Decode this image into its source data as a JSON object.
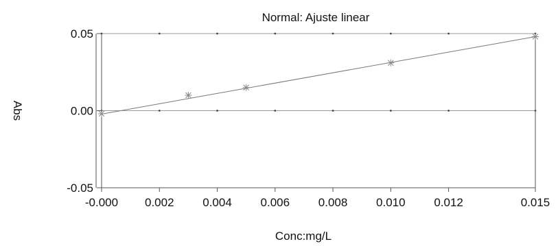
{
  "chart_data": {
    "type": "scatter",
    "title": "Normal: Ajuste linear",
    "xlabel": "Conc:mg/L",
    "ylabel": "Abs",
    "xlim": [
      0,
      0.015
    ],
    "ylim": [
      -0.05,
      0.05
    ],
    "x_ticks": [
      {
        "value": 0,
        "label": "-0.000"
      },
      {
        "value": 0.002,
        "label": "0.002"
      },
      {
        "value": 0.004,
        "label": "0.004"
      },
      {
        "value": 0.006,
        "label": "0.006"
      },
      {
        "value": 0.008,
        "label": "0.008"
      },
      {
        "value": 0.01,
        "label": "0.010"
      },
      {
        "value": 0.012,
        "label": "0.012"
      },
      {
        "value": 0.015,
        "label": "0.015"
      }
    ],
    "y_ticks": [
      {
        "value": 0.05,
        "label": "0.05"
      },
      {
        "value": 0.0,
        "label": "0.00"
      },
      {
        "value": -0.05,
        "label": "-0.05"
      }
    ],
    "points": [
      {
        "x": 0.0,
        "y": -0.002
      },
      {
        "x": 0.003,
        "y": 0.01
      },
      {
        "x": 0.005,
        "y": 0.015
      },
      {
        "x": 0.01,
        "y": 0.031
      },
      {
        "x": 0.015,
        "y": 0.048
      }
    ],
    "fit_line": {
      "x0": 0.0,
      "y0": -0.0022,
      "x1": 0.015,
      "y1": 0.048
    },
    "grid": "dotted-at-y-ticks",
    "legend": "none",
    "colors": {
      "line": "#777777",
      "axes": "#555555",
      "marker": "#888888",
      "text": "#111111"
    }
  }
}
